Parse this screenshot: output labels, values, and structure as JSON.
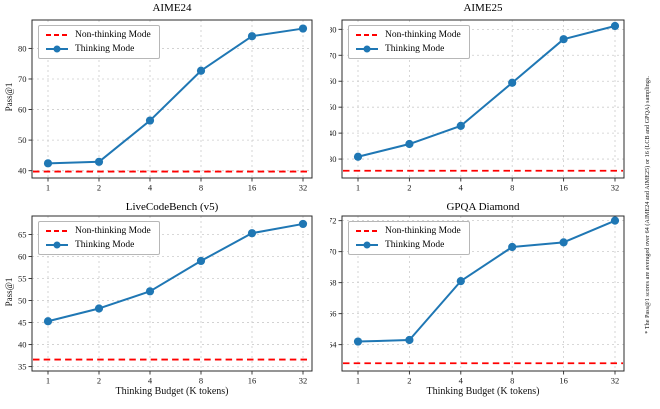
{
  "legend": {
    "non_thinking": "Non-thinking Mode",
    "thinking": "Thinking Mode"
  },
  "footnote": "* The Pass@1 scores are averaged over 64 (AIME24 and AIME25) or 16 (LCB and GPQA) samplings.",
  "colors": {
    "thinking_line": "#1f77b4",
    "non_thinking_line": "#ff0000",
    "grid": "#cccccc",
    "spine": "#2b2b2b",
    "tick_label": "#1a1a1a"
  },
  "chart_data": [
    {
      "type": "line",
      "title": "AIME24",
      "ylabel": "Pass@1",
      "xlabel": "",
      "x_scale": "log2",
      "x": [
        1,
        2,
        4,
        8,
        16,
        32
      ],
      "xtick_labels": [
        "1",
        "2",
        "4",
        "8",
        "16",
        "32"
      ],
      "yticks": [
        40,
        50,
        60,
        70,
        80
      ],
      "ylim": [
        37.6,
        89.3
      ],
      "grid": true,
      "legend_position": "upper-left",
      "series": [
        {
          "name": "Thinking Mode",
          "style": "solid-line-circle-markers",
          "values": [
            42.4,
            42.9,
            56.4,
            72.7,
            84.0,
            86.5
          ]
        },
        {
          "name": "Non-thinking Mode",
          "style": "dashed-horizontal-baseline",
          "value": 39.7
        }
      ]
    },
    {
      "type": "line",
      "title": "AIME25",
      "ylabel": "",
      "xlabel": "",
      "x_scale": "log2",
      "x": [
        1,
        2,
        4,
        8,
        16,
        32
      ],
      "xtick_labels": [
        "1",
        "2",
        "4",
        "8",
        "16",
        "32"
      ],
      "yticks": [
        30,
        40,
        50,
        60,
        70,
        80
      ],
      "ylim": [
        22.7,
        83.6
      ],
      "grid": true,
      "legend_position": "upper-left",
      "series": [
        {
          "name": "Thinking Mode",
          "style": "solid-line-circle-markers",
          "values": [
            30.9,
            35.8,
            42.8,
            59.4,
            76.2,
            81.3
          ]
        },
        {
          "name": "Non-thinking Mode",
          "style": "dashed-horizontal-baseline",
          "value": 25.5
        }
      ]
    },
    {
      "type": "line",
      "title": "LiveCodeBench (v5)",
      "ylabel": "Pass@1",
      "xlabel": "Thinking Budget (K tokens)",
      "x_scale": "log2",
      "x": [
        1,
        2,
        4,
        8,
        16,
        32
      ],
      "xtick_labels": [
        "1",
        "2",
        "4",
        "8",
        "16",
        "32"
      ],
      "yticks": [
        35,
        40,
        45,
        50,
        55,
        60,
        65
      ],
      "ylim": [
        34.0,
        69.2
      ],
      "grid": true,
      "legend_position": "upper-left",
      "series": [
        {
          "name": "Thinking Mode",
          "style": "solid-line-circle-markers",
          "values": [
            45.3,
            48.2,
            52.1,
            59.0,
            65.3,
            67.4
          ]
        },
        {
          "name": "Non-thinking Mode",
          "style": "dashed-horizontal-baseline",
          "value": 36.6
        }
      ]
    },
    {
      "type": "line",
      "title": "GPQA Diamond",
      "ylabel": "",
      "xlabel": "Thinking Budget (K tokens)",
      "x_scale": "log2",
      "x": [
        1,
        2,
        4,
        8,
        16,
        32
      ],
      "xtick_labels": [
        "1",
        "2",
        "4",
        "8",
        "16",
        "32"
      ],
      "yticks": [
        64,
        66,
        68,
        70,
        72
      ],
      "ylim": [
        62.3,
        72.3
      ],
      "grid": true,
      "legend_position": "upper-left",
      "series": [
        {
          "name": "Thinking Mode",
          "style": "solid-line-circle-markers",
          "values": [
            64.2,
            64.3,
            68.1,
            70.3,
            70.6,
            72.0
          ]
        },
        {
          "name": "Non-thinking Mode",
          "style": "dashed-horizontal-baseline",
          "value": 62.8
        }
      ]
    }
  ]
}
